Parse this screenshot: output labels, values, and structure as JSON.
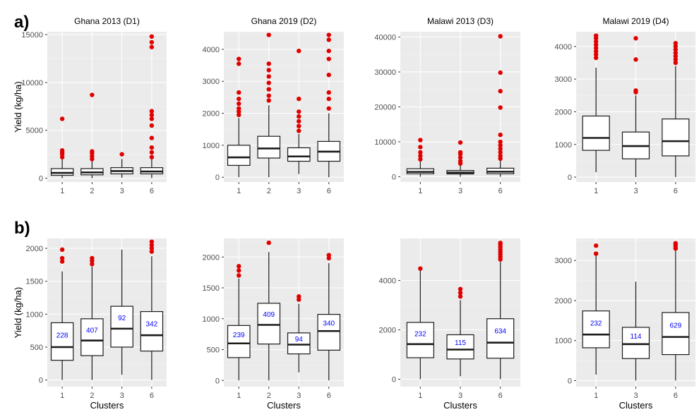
{
  "row_labels": [
    "a)",
    "b)"
  ],
  "chart_data": [
    {
      "type": "boxplot",
      "row": "a",
      "title": "Ghana 2013 (D1)",
      "xlabel": "",
      "ylabel": "Yield (kg/ha)",
      "ylim": [
        -400,
        15300
      ],
      "yticks": [
        0,
        5000,
        10000,
        15000
      ],
      "tick_labels": [
        "0",
        "5000",
        "10000",
        "15000"
      ],
      "categories": [
        "1",
        "2",
        "3",
        "6"
      ],
      "boxes": [
        {
          "q1": 300,
          "median": 550,
          "q3": 1000,
          "lower": 0,
          "upper": 2100,
          "outliers": [
            2200,
            2500,
            2700,
            2900,
            6200
          ],
          "count": ""
        },
        {
          "q1": 350,
          "median": 600,
          "q3": 1000,
          "lower": 0,
          "upper": 1900,
          "outliers": [
            2000,
            2300,
            2600,
            2800,
            8700
          ],
          "count": ""
        },
        {
          "q1": 450,
          "median": 750,
          "q3": 1100,
          "lower": 50,
          "upper": 2000,
          "outliers": [
            2500
          ],
          "count": ""
        },
        {
          "q1": 450,
          "median": 700,
          "q3": 1100,
          "lower": 0,
          "upper": 2000,
          "outliers": [
            2200,
            2700,
            3200,
            4200,
            5500,
            6200,
            6600,
            7000,
            13700,
            14200,
            14800
          ],
          "count": ""
        }
      ]
    },
    {
      "type": "boxplot",
      "row": "a",
      "title": "Ghana 2019 (D2)",
      "xlabel": "",
      "ylabel": "",
      "ylim": [
        -150,
        4550
      ],
      "yticks": [
        0,
        1000,
        2000,
        3000,
        4000
      ],
      "tick_labels": [
        "0",
        "1000",
        "2000",
        "3000",
        "4000"
      ],
      "categories": [
        "1",
        "2",
        "3",
        "6"
      ],
      "boxes": [
        {
          "q1": 370,
          "median": 620,
          "q3": 1000,
          "lower": 0,
          "upper": 1850,
          "outliers": [
            1950,
            2050,
            2150,
            2300,
            2450,
            2650,
            3550,
            3700
          ],
          "count": ""
        },
        {
          "q1": 600,
          "median": 900,
          "q3": 1280,
          "lower": 0,
          "upper": 2250,
          "outliers": [
            2400,
            2550,
            2750,
            2950,
            3150,
            3350,
            3550,
            4450
          ],
          "count": ""
        },
        {
          "q1": 500,
          "median": 650,
          "q3": 920,
          "lower": 100,
          "upper": 1350,
          "outliers": [
            1450,
            1600,
            1750,
            1900,
            2050,
            2450,
            3950
          ],
          "count": ""
        },
        {
          "q1": 500,
          "median": 800,
          "q3": 1120,
          "lower": 0,
          "upper": 2000,
          "outliers": [
            2150,
            2450,
            2650,
            3200,
            3700,
            3950,
            4300,
            4450
          ],
          "count": ""
        }
      ]
    },
    {
      "type": "boxplot",
      "row": "a",
      "title": "Malawi 2013 (D3)",
      "xlabel": "",
      "ylabel": "",
      "ylim": [
        -1500,
        41500
      ],
      "yticks": [
        0,
        10000,
        20000,
        30000,
        40000
      ],
      "tick_labels": [
        "0",
        "10000",
        "20000",
        "30000",
        "40000"
      ],
      "categories": [
        "1",
        "3",
        "6"
      ],
      "boxes": [
        {
          "q1": 850,
          "median": 1400,
          "q3": 2300,
          "lower": 0,
          "upper": 4400,
          "outliers": [
            5000,
            6000,
            7000,
            8500,
            10500
          ],
          "count": ""
        },
        {
          "q1": 800,
          "median": 1200,
          "q3": 1800,
          "lower": 0,
          "upper": 3300,
          "outliers": [
            3800,
            4500,
            5500,
            6500,
            7000,
            9800
          ],
          "count": ""
        },
        {
          "q1": 850,
          "median": 1450,
          "q3": 2450,
          "lower": 0,
          "upper": 4800,
          "outliers": [
            5200,
            6000,
            7000,
            8000,
            9000,
            10000,
            12000,
            19800,
            24500,
            29800,
            40200
          ],
          "count": ""
        }
      ]
    },
    {
      "type": "boxplot",
      "row": "a",
      "title": "Malawi 2019 (D4)",
      "xlabel": "",
      "ylabel": "",
      "ylim": [
        -150,
        4450
      ],
      "yticks": [
        0,
        1000,
        2000,
        3000,
        4000
      ],
      "tick_labels": [
        "0",
        "1000",
        "2000",
        "3000",
        "4000"
      ],
      "categories": [
        "1",
        "3",
        "6"
      ],
      "boxes": [
        {
          "q1": 820,
          "median": 1200,
          "q3": 1870,
          "lower": 150,
          "upper": 3350,
          "outliers": [
            3650,
            3750,
            3850,
            3950,
            4050,
            4150,
            4250,
            4330
          ],
          "count": ""
        },
        {
          "q1": 560,
          "median": 950,
          "q3": 1380,
          "lower": 0,
          "upper": 2500,
          "outliers": [
            2600,
            2650,
            3600,
            4250
          ],
          "count": ""
        },
        {
          "q1": 650,
          "median": 1100,
          "q3": 1780,
          "lower": 0,
          "upper": 3400,
          "outliers": [
            3500,
            3600,
            3700,
            3800,
            3900,
            4000,
            4100
          ],
          "count": ""
        }
      ]
    },
    {
      "type": "boxplot",
      "row": "b",
      "title": "",
      "xlabel": "Clusters",
      "ylabel": "Yield (kg/ha)",
      "ylim": [
        -100,
        2150
      ],
      "yticks": [
        0,
        500,
        1000,
        1500,
        2000
      ],
      "tick_labels": [
        "0",
        "500",
        "1000",
        "1500",
        "2000"
      ],
      "categories": [
        "1",
        "2",
        "3",
        "6"
      ],
      "boxes": [
        {
          "q1": 300,
          "median": 500,
          "q3": 870,
          "lower": 0,
          "upper": 1650,
          "outliers": [
            1800,
            1850,
            1980
          ],
          "count": "228"
        },
        {
          "q1": 370,
          "median": 600,
          "q3": 930,
          "lower": 0,
          "upper": 1720,
          "outliers": [
            1760,
            1810,
            1850
          ],
          "count": "407"
        },
        {
          "q1": 500,
          "median": 780,
          "q3": 1120,
          "lower": 80,
          "upper": 1980,
          "outliers": [],
          "count": "92"
        },
        {
          "q1": 440,
          "median": 680,
          "q3": 1040,
          "lower": 0,
          "upper": 1880,
          "outliers": [
            1950,
            2000,
            2050,
            2100
          ],
          "count": "342"
        }
      ]
    },
    {
      "type": "boxplot",
      "row": "b",
      "title": "",
      "xlabel": "Clusters",
      "ylabel": "",
      "ylim": [
        -100,
        2300
      ],
      "yticks": [
        0,
        500,
        1000,
        1500,
        2000
      ],
      "tick_labels": [
        "0",
        "500",
        "1000",
        "1500",
        "2000"
      ],
      "categories": [
        "1",
        "2",
        "3",
        "6"
      ],
      "boxes": [
        {
          "q1": 370,
          "median": 600,
          "q3": 890,
          "lower": 0,
          "upper": 1650,
          "outliers": [
            1700,
            1780,
            1850
          ],
          "count": "239"
        },
        {
          "q1": 590,
          "median": 900,
          "q3": 1250,
          "lower": 0,
          "upper": 2080,
          "outliers": [
            2230
          ],
          "count": "409"
        },
        {
          "q1": 430,
          "median": 580,
          "q3": 770,
          "lower": 130,
          "upper": 1240,
          "outliers": [
            1310,
            1360
          ],
          "count": "94"
        },
        {
          "q1": 490,
          "median": 800,
          "q3": 1070,
          "lower": 0,
          "upper": 1900,
          "outliers": [
            1980,
            2030
          ],
          "count": "340"
        }
      ]
    },
    {
      "type": "boxplot",
      "row": "b",
      "title": "",
      "xlabel": "Clusters",
      "ylabel": "",
      "ylim": [
        -300,
        5700
      ],
      "yticks": [
        0,
        2000,
        4000
      ],
      "tick_labels": [
        "0",
        "2000",
        "4000"
      ],
      "categories": [
        "1",
        "3",
        "6"
      ],
      "boxes": [
        {
          "q1": 870,
          "median": 1420,
          "q3": 2300,
          "lower": 0,
          "upper": 4450,
          "outliers": [
            4480
          ],
          "count": "232"
        },
        {
          "q1": 820,
          "median": 1200,
          "q3": 1800,
          "lower": 120,
          "upper": 3200,
          "outliers": [
            3350,
            3500,
            3650
          ],
          "count": "115"
        },
        {
          "q1": 850,
          "median": 1480,
          "q3": 2450,
          "lower": 0,
          "upper": 4750,
          "outliers": [
            4850,
            4950,
            5050,
            5150,
            5250,
            5350,
            5450,
            5520
          ],
          "count": "634"
        }
      ]
    },
    {
      "type": "boxplot",
      "row": "b",
      "title": "",
      "xlabel": "Clusters",
      "ylabel": "",
      "ylim": [
        -150,
        3550
      ],
      "yticks": [
        0,
        1000,
        2000,
        3000
      ],
      "tick_labels": [
        "0",
        "1000",
        "2000",
        "3000"
      ],
      "categories": [
        "1",
        "3",
        "6"
      ],
      "boxes": [
        {
          "q1": 820,
          "median": 1150,
          "q3": 1740,
          "lower": 150,
          "upper": 3150,
          "outliers": [
            3170,
            3370
          ],
          "count": "232"
        },
        {
          "q1": 550,
          "median": 910,
          "q3": 1330,
          "lower": 0,
          "upper": 2470,
          "outliers": [],
          "count": "114"
        },
        {
          "q1": 650,
          "median": 1090,
          "q3": 1700,
          "lower": 0,
          "upper": 3270,
          "outliers": [
            3300,
            3350,
            3400,
            3430
          ],
          "count": "629"
        }
      ]
    }
  ],
  "colors": {
    "panel_bg": "#ebebeb",
    "grid_major": "#ffffff",
    "grid_minor": "#f4f4f4",
    "box_fill": "#ffffff",
    "box_stroke": "#1a1a1a",
    "outlier": "#e00000",
    "count_label": "#0000ff",
    "tick_text": "#4d4d4d",
    "axis_text": "#000000"
  }
}
